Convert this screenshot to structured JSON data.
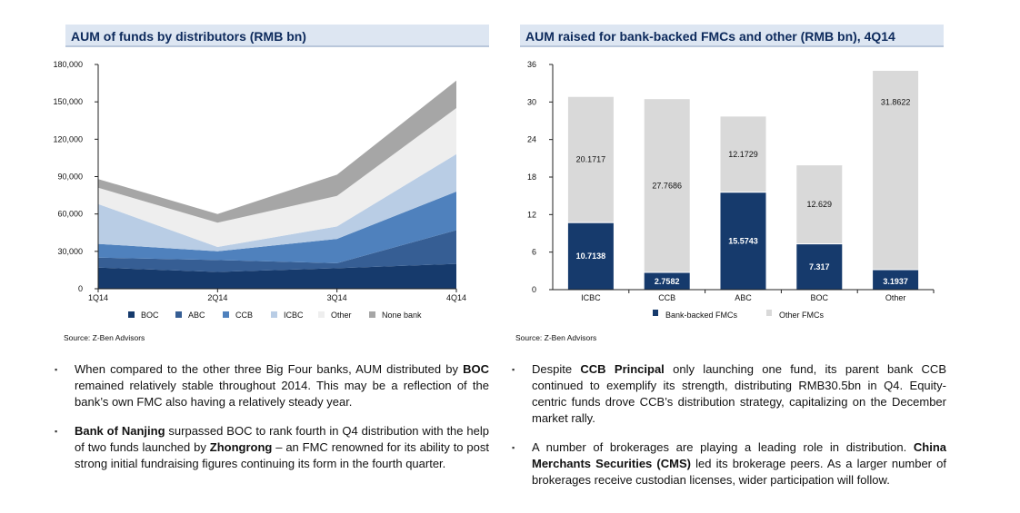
{
  "left_panel": {
    "title": "AUM of funds by distributors (RMB bn)",
    "source": "Source: Z-Ben Advisors",
    "bullets": [
      {
        "parts": [
          {
            "text": "When compared to the other three Big Four banks, AUM distributed by ",
            "bold": false
          },
          {
            "text": "BOC",
            "bold": true
          },
          {
            "text": " remained relatively stable throughout 2014. This may be a reflection of the bank’s own FMC  also having a relatively steady year.",
            "bold": false
          }
        ]
      },
      {
        "parts": [
          {
            "text": "Bank of Nanjing",
            "bold": true
          },
          {
            "text": " surpassed BOC to rank fourth in Q4 distribution with the help of two funds launched by ",
            "bold": false
          },
          {
            "text": "Zhongrong",
            "bold": true
          },
          {
            "text": " – an FMC renowned for its ability to post strong initial fundraising figures continuing its form in the fourth quarter.",
            "bold": false
          }
        ]
      }
    ]
  },
  "right_panel": {
    "title": "AUM raised for bank-backed FMCs and other (RMB bn), 4Q14",
    "source": "Source: Z-Ben Advisors",
    "bullets": [
      {
        "parts": [
          {
            "text": "Despite ",
            "bold": false
          },
          {
            "text": "CCB Principal",
            "bold": true
          },
          {
            "text": " only launching one fund, its parent bank CCB continued to exemplify its strength, distributing RMB30.5bn in Q4. Equity-centric funds drove CCB’s distribution strategy, capitalizing on the December market rally.",
            "bold": false
          }
        ]
      },
      {
        "parts": [
          {
            "text": "A number of brokerages are playing a leading role in distribution. ",
            "bold": false
          },
          {
            "text": "China Merchants Securities (CMS)",
            "bold": true
          },
          {
            "text": " led its brokerage peers. As a larger number of brokerages receive custodian licenses, wider participation will follow.",
            "bold": false
          }
        ]
      }
    ]
  },
  "chart_data": [
    {
      "type": "area",
      "stacked": true,
      "title": "AUM of funds by distributors (RMB bn)",
      "x": [
        "1Q14",
        "2Q14",
        "3Q14",
        "4Q14"
      ],
      "ylim": [
        0,
        180000
      ],
      "yticks": [
        0,
        30000,
        60000,
        90000,
        120000,
        150000,
        180000
      ],
      "ytick_labels": [
        "0",
        "30,000",
        "60,000",
        "90,000",
        "120,000",
        "150,000",
        "180,000"
      ],
      "legend_position": "bottom",
      "series": [
        {
          "name": "BOC",
          "values": [
            17000,
            13500,
            16500,
            20000
          ],
          "color": "#163a6c"
        },
        {
          "name": "ABC",
          "values": [
            8000,
            9500,
            4000,
            27000
          ],
          "color": "#365e94"
        },
        {
          "name": "CCB",
          "values": [
            11000,
            7000,
            19500,
            31000
          ],
          "color": "#4f81bd"
        },
        {
          "name": "ICBC",
          "values": [
            32000,
            3500,
            10000,
            30000
          ],
          "color": "#b9cde5"
        },
        {
          "name": "Other",
          "values": [
            13000,
            19500,
            24500,
            37000
          ],
          "color": "#eeeeee"
        },
        {
          "name": "None bank",
          "values": [
            7000,
            7000,
            17000,
            22000
          ],
          "color": "#a6a6a6"
        }
      ]
    },
    {
      "type": "bar",
      "stacked": true,
      "title": "AUM raised for bank-backed FMCs and other (RMB bn), 4Q14",
      "categories": [
        "ICBC",
        "CCB",
        "ABC",
        "BOC",
        "Other"
      ],
      "ylim": [
        0,
        36
      ],
      "yticks": [
        0,
        6,
        12,
        18,
        24,
        30,
        36
      ],
      "legend_position": "bottom",
      "series": [
        {
          "name": "Bank-backed FMCs",
          "values": [
            10.7138,
            2.7582,
            15.5743,
            7.317,
            3.1937
          ],
          "labels": [
            "10.7138",
            "2.7582",
            "15.5743",
            "7.317",
            "3.1937"
          ],
          "color": "#163a6c"
        },
        {
          "name": "Other FMCs",
          "values": [
            20.1717,
            27.7686,
            12.1729,
            12.629,
            31.8622
          ],
          "labels": [
            "20.1717",
            "27.7686",
            "12.1729",
            "12.629",
            "31.8622"
          ],
          "color": "#d9d9d9"
        }
      ]
    }
  ]
}
